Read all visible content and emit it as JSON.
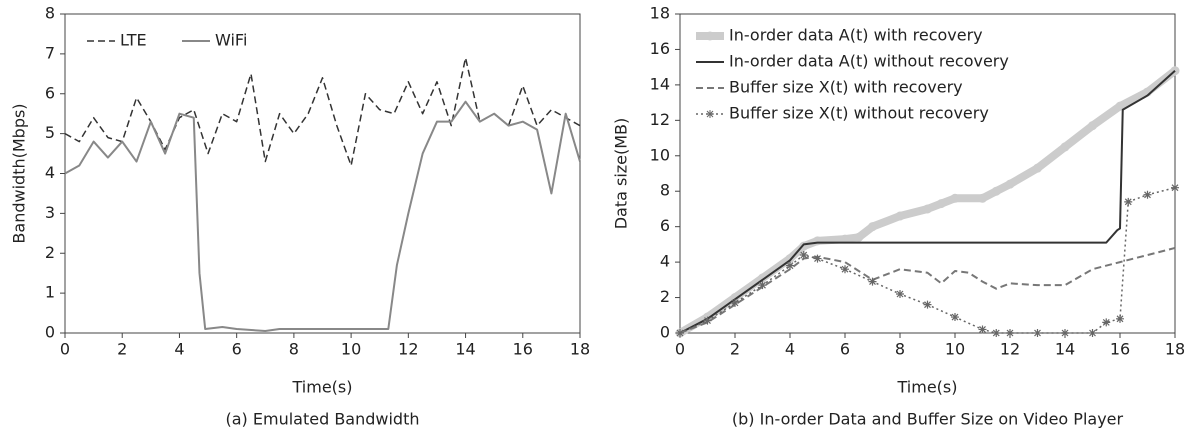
{
  "chart_data": [
    {
      "type": "line",
      "xlabel": "Time(s)",
      "ylabel": "Bandwidth(Mbps)",
      "caption": "(a) Emulated Bandwidth",
      "xlim": [
        0,
        18
      ],
      "xticks": [
        0,
        2,
        4,
        6,
        8,
        10,
        12,
        14,
        16,
        18
      ],
      "ylim": [
        0,
        8
      ],
      "yticks": [
        0,
        1,
        2,
        3,
        4,
        5,
        6,
        7,
        8
      ],
      "legend": "upper left",
      "legend_ncol": 2,
      "series": [
        {
          "name": "LTE",
          "color": "#333333",
          "dash": "dashed",
          "width": 1.5,
          "x": [
            0,
            0.5,
            1,
            1.5,
            2,
            2.5,
            3,
            3.5,
            4,
            4.5,
            5,
            5.5,
            6,
            6.5,
            7,
            7.5,
            8,
            8.5,
            9,
            9.5,
            10,
            10.5,
            11,
            11.5,
            12,
            12.5,
            13,
            13.5,
            14,
            14.5,
            15,
            15.5,
            16,
            16.5,
            17,
            17.5,
            18
          ],
          "values": [
            5.0,
            4.8,
            5.4,
            4.9,
            4.8,
            5.9,
            5.3,
            4.6,
            5.4,
            5.6,
            4.5,
            5.5,
            5.3,
            6.5,
            4.3,
            5.5,
            5.0,
            5.5,
            6.4,
            5.2,
            4.2,
            6.0,
            5.6,
            5.5,
            6.3,
            5.5,
            6.3,
            5.2,
            6.9,
            5.3,
            5.5,
            5.2,
            6.2,
            5.2,
            5.6,
            5.4,
            5.2
          ]
        },
        {
          "name": "WiFi",
          "color": "#888888",
          "dash": "solid",
          "width": 2,
          "x": [
            0,
            0.5,
            1,
            1.5,
            2,
            2.5,
            3,
            3.5,
            4,
            4.5,
            4.7,
            4.9,
            5.5,
            6,
            7,
            7.5,
            8,
            9,
            10,
            11,
            11.3,
            11.6,
            12,
            12.5,
            13,
            13.5,
            14,
            14.5,
            15,
            15.5,
            16,
            16.5,
            17,
            17.5,
            18
          ],
          "values": [
            4.0,
            4.2,
            4.8,
            4.4,
            4.8,
            4.3,
            5.3,
            4.5,
            5.5,
            5.4,
            1.5,
            0.1,
            0.15,
            0.1,
            0.05,
            0.1,
            0.1,
            0.1,
            0.1,
            0.1,
            0.1,
            1.7,
            3.0,
            4.5,
            5.3,
            5.3,
            5.8,
            5.3,
            5.5,
            5.2,
            5.3,
            5.1,
            3.5,
            5.5,
            4.3
          ]
        }
      ]
    },
    {
      "type": "line",
      "xlabel": "Time(s)",
      "ylabel": "Data size(MB)",
      "caption": "(b) In-order Data and Buffer Size on Video Player",
      "xlim": [
        0,
        18
      ],
      "xticks": [
        0,
        2,
        4,
        6,
        8,
        10,
        12,
        14,
        16,
        18
      ],
      "ylim": [
        0,
        18
      ],
      "yticks": [
        0,
        2,
        4,
        6,
        8,
        10,
        12,
        14,
        16,
        18
      ],
      "legend": "upper left",
      "legend_ncol": 1,
      "series": [
        {
          "name": "In-order data A(t) with recovery",
          "color": "#cccccc",
          "dash": "solid",
          "width": 8,
          "marker": "circle",
          "x": [
            0,
            1,
            2,
            3,
            4,
            4.5,
            5,
            6,
            6.5,
            7,
            8,
            9,
            9.5,
            10,
            11,
            11.5,
            12,
            13,
            14,
            15,
            16,
            17,
            18
          ],
          "values": [
            0,
            0.9,
            2.0,
            3.1,
            4.2,
            4.9,
            5.2,
            5.3,
            5.4,
            6.0,
            6.6,
            7.0,
            7.3,
            7.6,
            7.6,
            8.0,
            8.4,
            9.3,
            10.5,
            11.7,
            12.8,
            13.6,
            14.8
          ]
        },
        {
          "name": "In-order data A(t) without recovery",
          "color": "#333333",
          "dash": "solid",
          "width": 2,
          "x": [
            0,
            1,
            2,
            3,
            4,
            4.5,
            5,
            10,
            15,
            15.5,
            15.9,
            16.0,
            16.1,
            17,
            18
          ],
          "values": [
            0,
            0.8,
            1.9,
            3.0,
            4.1,
            5.0,
            5.1,
            5.1,
            5.1,
            5.1,
            5.8,
            5.9,
            12.6,
            13.4,
            14.8
          ]
        },
        {
          "name": "Buffer size X(t) with recovery",
          "color": "#777777",
          "dash": "dashed",
          "width": 2,
          "x": [
            0,
            1,
            2,
            3,
            4,
            4.5,
            5,
            6,
            7,
            8,
            9,
            9.5,
            10,
            10.5,
            11,
            11.5,
            12,
            13,
            14,
            15,
            16,
            17,
            18
          ],
          "values": [
            0,
            0.6,
            1.6,
            2.6,
            3.6,
            4.2,
            4.3,
            4.0,
            3.0,
            3.6,
            3.4,
            2.8,
            3.5,
            3.4,
            2.9,
            2.5,
            2.8,
            2.7,
            2.7,
            3.6,
            4.0,
            4.4,
            4.8
          ]
        },
        {
          "name": "Buffer size X(t) without recovery",
          "color": "#666666",
          "dash": "dotted",
          "width": 1.5,
          "marker": "asterisk",
          "x": [
            0,
            1,
            2,
            3,
            4,
            4.5,
            5,
            6,
            7,
            8,
            9,
            10,
            11,
            11.5,
            12,
            13,
            14,
            15,
            15.5,
            16,
            16.3,
            17,
            18
          ],
          "values": [
            0,
            0.7,
            1.7,
            2.7,
            3.8,
            4.4,
            4.2,
            3.6,
            2.9,
            2.2,
            1.6,
            0.9,
            0.2,
            0.0,
            0.0,
            0.0,
            0.0,
            0.0,
            0.6,
            0.8,
            7.4,
            7.8,
            8.2
          ]
        }
      ]
    }
  ]
}
